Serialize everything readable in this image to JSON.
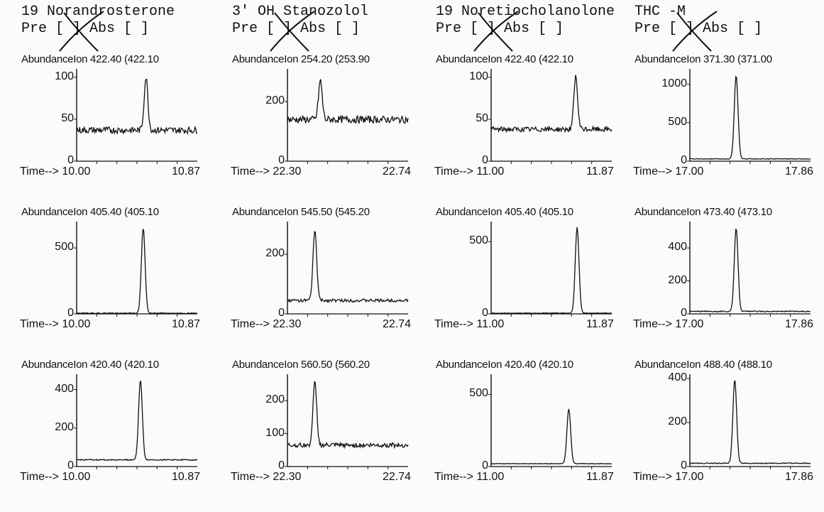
{
  "chart_data": [
    {
      "title": "19 Norandrosterone",
      "header": "Pre [ ] Abs [ ]",
      "panels": [
        {
          "ion_label": "AbundanceIon 422.40 (422.10",
          "time_label": "Time--> 10.00",
          "time_end": "10.87",
          "xlim": [
            10.0,
            10.87
          ],
          "ylim": [
            0,
            110
          ],
          "yticks": [
            0,
            50,
            100
          ],
          "peak": {
            "x": 10.5,
            "height": 100,
            "base": 37,
            "noise": 4
          }
        },
        {
          "ion_label": "AbundanceIon 405.40 (405.10",
          "time_label": "Time--> 10.00",
          "time_end": "10.87",
          "xlim": [
            10.0,
            10.87
          ],
          "ylim": [
            0,
            700
          ],
          "yticks": [
            0,
            500
          ],
          "peak": {
            "x": 10.48,
            "height": 650,
            "base": 5,
            "noise": 3
          }
        },
        {
          "ion_label": "AbundanceIon 420.40 (420.10",
          "time_label": "Time--> 10.00",
          "time_end": "10.87",
          "xlim": [
            10.0,
            10.87
          ],
          "ylim": [
            0,
            480
          ],
          "yticks": [
            0,
            200,
            400
          ],
          "peak": {
            "x": 10.46,
            "height": 450,
            "base": 35,
            "noise": 3
          }
        }
      ]
    },
    {
      "title": "3' OH Stanozolol",
      "header": "Pre [ ] Abs [ ]",
      "panels": [
        {
          "ion_label": "AbundanceIon 254.20 (253.90",
          "time_label": "Time--> 22.30",
          "time_end": "22.74",
          "xlim": [
            22.3,
            22.74
          ],
          "ylim": [
            0,
            310
          ],
          "yticks": [
            0,
            200
          ],
          "peak": {
            "x": 22.42,
            "height": 270,
            "base": 140,
            "noise": 12
          }
        },
        {
          "ion_label": "AbundanceIon 545.50 (545.20",
          "time_label": "Time--> 22.30",
          "time_end": "22.74",
          "xlim": [
            22.3,
            22.74
          ],
          "ylim": [
            0,
            310
          ],
          "yticks": [
            0,
            200
          ],
          "peak": {
            "x": 22.4,
            "height": 280,
            "base": 45,
            "noise": 5
          }
        },
        {
          "ion_label": "AbundanceIon 560.50 (560.20",
          "time_label": "Time--> 22.30",
          "time_end": "22.74",
          "xlim": [
            22.3,
            22.74
          ],
          "ylim": [
            0,
            280
          ],
          "yticks": [
            0,
            100,
            200
          ],
          "peak": {
            "x": 22.4,
            "height": 255,
            "base": 65,
            "noise": 7
          }
        }
      ]
    },
    {
      "title": "19 Noretiocholanolone",
      "header": "Pre [ ] Abs [ ]",
      "panels": [
        {
          "ion_label": "AbundanceIon 422.40 (422.10",
          "time_label": "Time--> 11.00",
          "time_end": "11.87",
          "xlim": [
            11.0,
            11.87
          ],
          "ylim": [
            0,
            110
          ],
          "yticks": [
            0,
            50,
            100
          ],
          "peak": {
            "x": 11.61,
            "height": 100,
            "base": 38,
            "noise": 3
          }
        },
        {
          "ion_label": "AbundanceIon 405.40 (405.10",
          "time_label": "Time--> 11.00",
          "time_end": "11.87",
          "xlim": [
            11.0,
            11.87
          ],
          "ylim": [
            0,
            640
          ],
          "yticks": [
            0,
            500
          ],
          "peak": {
            "x": 11.62,
            "height": 600,
            "base": 5,
            "noise": 2
          }
        },
        {
          "ion_label": "AbundanceIon 420.40 (420.10",
          "time_label": "Time--> 11.00",
          "time_end": "11.87",
          "xlim": [
            11.0,
            11.87
          ],
          "ylim": [
            0,
            640
          ],
          "yticks": [
            0,
            500
          ],
          "peak": {
            "x": 11.56,
            "height": 400,
            "base": 20,
            "noise": 2
          }
        }
      ]
    },
    {
      "title": "THC -M",
      "header": "Pre [ ] Abs [ ]",
      "panels": [
        {
          "ion_label": "AbundanceIon 371.30 (371.00",
          "time_label": "Time--> 17.00",
          "time_end": "17.86",
          "xlim": [
            17.0,
            17.86
          ],
          "ylim": [
            0,
            1200
          ],
          "yticks": [
            0,
            500,
            1000
          ],
          "peak": {
            "x": 17.33,
            "height": 1110,
            "base": 30,
            "noise": 4
          }
        },
        {
          "ion_label": "AbundanceIon 473.40 (473.10",
          "time_label": "Time--> 17.00",
          "time_end": "17.86",
          "xlim": [
            17.0,
            17.86
          ],
          "ylim": [
            0,
            560
          ],
          "yticks": [
            0,
            200,
            400
          ],
          "peak": {
            "x": 17.33,
            "height": 520,
            "base": 15,
            "noise": 3
          }
        },
        {
          "ion_label": "AbundanceIon 488.40 (488.10",
          "time_label": "Time--> 17.00",
          "time_end": "17.86",
          "xlim": [
            17.0,
            17.86
          ],
          "ylim": [
            0,
            420
          ],
          "yticks": [
            0,
            200,
            400
          ],
          "peak": {
            "x": 17.32,
            "height": 395,
            "base": 15,
            "noise": 2
          }
        }
      ]
    }
  ]
}
